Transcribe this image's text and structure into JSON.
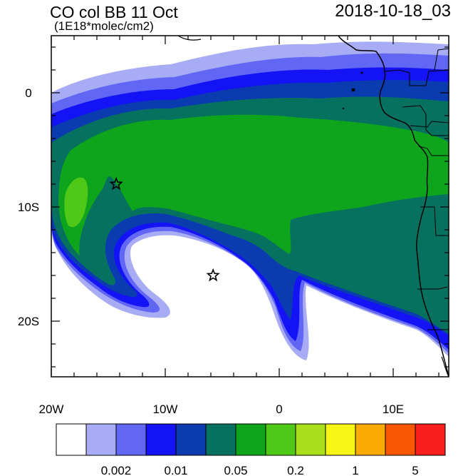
{
  "header": {
    "title": "CO col BB 11 Oct",
    "units": "(1E18*molec/cm2)",
    "datetime": "2018-10-18_03"
  },
  "map": {
    "lon_labels": [
      "20W",
      "10W",
      "0",
      "10E"
    ],
    "lat_labels": [
      "0",
      "10S",
      "20S"
    ],
    "markers": [
      {
        "name": "star",
        "lon": -14.3,
        "lat": -8.0
      },
      {
        "name": "star",
        "lon": -5.8,
        "lat": -16.0
      }
    ],
    "land_color": "#ffffff",
    "coastline_color": "#000000"
  },
  "colorbar": {
    "colors": [
      "#ffffff",
      "#a8acf5",
      "#6166f4",
      "#1313f5",
      "#0a3cb0",
      "#077160",
      "#0ea51d",
      "#50c818",
      "#a7e01a",
      "#f6f614",
      "#fbab04",
      "#fb5703",
      "#f91e1e"
    ],
    "labels": [
      "0.002",
      "0.01",
      "0.05",
      "0.2",
      "1",
      "5"
    ]
  }
}
